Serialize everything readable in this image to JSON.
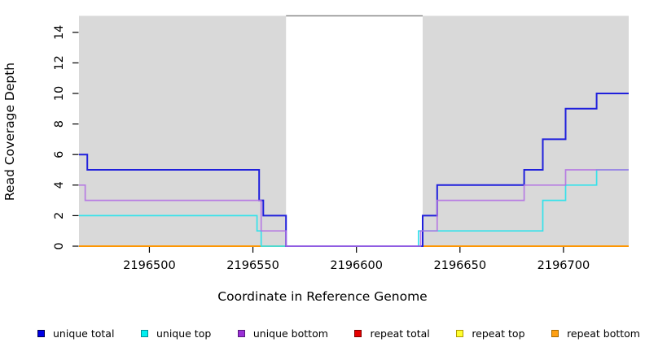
{
  "chart_data": {
    "type": "line",
    "subtype": "step-coverage",
    "title": "",
    "xlabel": "Coordinate in Reference Genome",
    "ylabel": "Read Coverage Depth",
    "xlim": [
      2196466,
      2196731.5
    ],
    "ylim": [
      0,
      15.08
    ],
    "x_ticks": [
      2196500,
      2196550,
      2196600,
      2196650,
      2196700
    ],
    "y_ticks": [
      0,
      2,
      4,
      6,
      8,
      10,
      12,
      14
    ],
    "grid": "off",
    "plot_bg": "#ffffff",
    "background_regions": [
      {
        "name": "left-shaded-region",
        "x0": 2196466,
        "x1": 2196566,
        "color": "#d9d9d9"
      },
      {
        "name": "right-shaded-region",
        "x0": 2196632,
        "x1": 2196731.5,
        "color": "#d9d9d9"
      }
    ],
    "gap_top_line": {
      "x0": 2196566,
      "x1": 2196632,
      "y": 15.08,
      "color": "#8a8a8a",
      "width": 1.6
    },
    "draw_order": [
      "repeat total",
      "repeat top",
      "repeat bottom",
      "unique top",
      "unique total",
      "unique bottom"
    ],
    "series": [
      {
        "name": "unique total",
        "line_color": "#2020dc",
        "line_width": 2,
        "opacity": 1,
        "segments": [
          [
            [
              2196466,
              6
            ],
            [
              2196470,
              5
            ],
            [
              2196553,
              3
            ],
            [
              2196555,
              2
            ],
            [
              2196566,
              0
            ],
            [
              2196632,
              2
            ],
            [
              2196639,
              4
            ],
            [
              2196681,
              5
            ],
            [
              2196690,
              7
            ],
            [
              2196701,
              9
            ],
            [
              2196716,
              10
            ],
            [
              2196731.5,
              10
            ]
          ]
        ]
      },
      {
        "name": "unique top",
        "line_color": "#35e2ea",
        "line_width": 1.7,
        "opacity": 1,
        "segments": [
          [
            [
              2196466,
              2
            ],
            [
              2196552,
              1
            ],
            [
              2196554,
              0
            ],
            [
              2196630,
              1
            ],
            [
              2196690,
              3
            ],
            [
              2196701,
              4
            ],
            [
              2196716,
              5
            ],
            [
              2196731.5,
              5
            ]
          ]
        ]
      },
      {
        "name": "unique bottom",
        "line_color": "#b26fe3",
        "line_width": 1.7,
        "opacity": 0.88,
        "segments": [
          [
            [
              2196466,
              4
            ],
            [
              2196469,
              3
            ],
            [
              2196554,
              1
            ],
            [
              2196566,
              0
            ],
            [
              2196631,
              1
            ],
            [
              2196639,
              3
            ],
            [
              2196681,
              4
            ],
            [
              2196701,
              5
            ],
            [
              2196731.5,
              5
            ]
          ]
        ]
      },
      {
        "name": "repeat total",
        "line_color": "#dd0000",
        "line_width": 1.8,
        "opacity": 1,
        "segments": [
          [
            [
              2196466,
              0
            ],
            [
              2196566,
              0
            ]
          ],
          [
            [
              2196632,
              0
            ],
            [
              2196731.5,
              0
            ]
          ]
        ]
      },
      {
        "name": "repeat top",
        "line_color": "#f5e600",
        "line_width": 1.8,
        "opacity": 1,
        "segments": [
          [
            [
              2196466,
              0
            ],
            [
              2196566,
              0
            ]
          ],
          [
            [
              2196632,
              0
            ],
            [
              2196731.5,
              0
            ]
          ]
        ]
      },
      {
        "name": "repeat bottom",
        "line_color": "#ff9100",
        "line_width": 1.8,
        "opacity": 1,
        "segments": [
          [
            [
              2196466,
              0
            ],
            [
              2196566,
              0
            ]
          ],
          [
            [
              2196632,
              0
            ],
            [
              2196731.5,
              0
            ]
          ]
        ]
      }
    ],
    "legend": {
      "position": "bottom-horizontal",
      "items": [
        {
          "label": "unique total",
          "fill": "#0000e6",
          "border": "#00004d"
        },
        {
          "label": "unique top",
          "fill": "#00f0f0",
          "border": "#008f96"
        },
        {
          "label": "unique bottom",
          "fill": "#9a2fd6",
          "border": "#571a7d"
        },
        {
          "label": "repeat total",
          "fill": "#e60000",
          "border": "#7d0000"
        },
        {
          "label": "repeat top",
          "fill": "#ffff2e",
          "border": "#b09a00"
        },
        {
          "label": "repeat bottom",
          "fill": "#ffa013",
          "border": "#a86a00"
        }
      ]
    }
  }
}
